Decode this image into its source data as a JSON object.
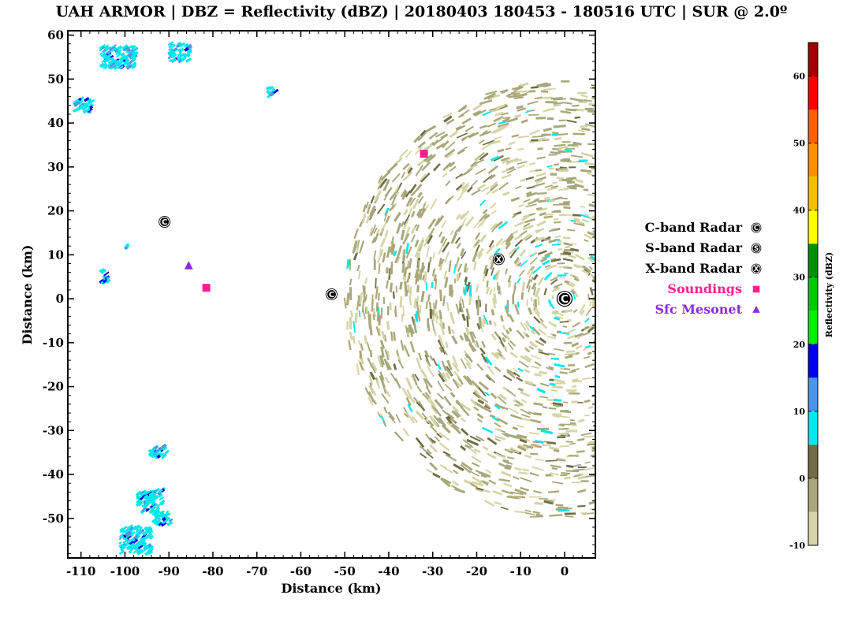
{
  "chart_data": {
    "type": "heatmap",
    "title": "UAH ARMOR | DBZ = Reflectivity (dBZ) | 20180403 180453 - 180516 UTC | SUR @ 2.0º",
    "xlabel": "Distance (km)",
    "ylabel": "Distance (km)",
    "xlim": [
      -113,
      7
    ],
    "ylim": [
      -59,
      61
    ],
    "x_ticks": [
      -110,
      -100,
      -90,
      -80,
      -70,
      -60,
      -50,
      -40,
      -30,
      -20,
      -10,
      0
    ],
    "y_ticks": [
      60,
      50,
      40,
      30,
      20,
      10,
      0,
      -10,
      -20,
      -30,
      -40,
      -50
    ],
    "grid": false,
    "colorbar": {
      "label": "Reflectivity (dBZ)",
      "ticks": [
        60,
        50,
        40,
        30,
        20,
        10,
        0,
        -10
      ],
      "range": [
        -10,
        65
      ],
      "bins": [
        {
          "from": -10,
          "to": -5,
          "color": "#d6d4a6"
        },
        {
          "from": -5,
          "to": 0,
          "color": "#a9a77a"
        },
        {
          "from": 0,
          "to": 5,
          "color": "#6e6d45"
        },
        {
          "from": 5,
          "to": 10,
          "color": "#00e8ec"
        },
        {
          "from": 10,
          "to": 15,
          "color": "#4a95e8"
        },
        {
          "from": 15,
          "to": 20,
          "color": "#0000e8"
        },
        {
          "from": 20,
          "to": 25,
          "color": "#00ee00"
        },
        {
          "from": 25,
          "to": 30,
          "color": "#00c800"
        },
        {
          "from": 30,
          "to": 35,
          "color": "#009000"
        },
        {
          "from": 35,
          "to": 40,
          "color": "#ffff00"
        },
        {
          "from": 40,
          "to": 45,
          "color": "#f0c000"
        },
        {
          "from": 45,
          "to": 50,
          "color": "#ff9000"
        },
        {
          "from": 50,
          "to": 55,
          "color": "#ff6000"
        },
        {
          "from": 55,
          "to": 60,
          "color": "#ff0000"
        },
        {
          "from": 60,
          "to": 65,
          "color": "#a00000"
        }
      ]
    },
    "echo_region": {
      "center": [
        0,
        0
      ],
      "radius_km": 50,
      "dominant_dbz": [
        -10,
        5
      ]
    },
    "markers": [
      {
        "type": "C-band Radar",
        "x": -91,
        "y": 17.5
      },
      {
        "type": "C-band Radar",
        "x": 0,
        "y": 0
      },
      {
        "type": "C-band Radar",
        "x": -53,
        "y": 1
      },
      {
        "type": "X-band Radar",
        "x": -15,
        "y": 9
      },
      {
        "type": "Soundings",
        "x": -32,
        "y": 33
      },
      {
        "type": "Soundings",
        "x": -81.5,
        "y": 2.5
      },
      {
        "type": "Sfc Mesonet",
        "x": -85.5,
        "y": 7.5
      }
    ],
    "legend": {
      "placement": "right",
      "entries": [
        {
          "label": "C-band Radar",
          "symbol": "C",
          "color": "#000000"
        },
        {
          "label": "S-band Radar",
          "symbol": "S",
          "color": "#000000"
        },
        {
          "label": "X-band Radar",
          "symbol": "X",
          "color": "#000000"
        },
        {
          "label": "Soundings",
          "symbol": "square",
          "color": "#ff1f8f"
        },
        {
          "label": "Sfc Mesonet",
          "symbol": "triangle",
          "color": "#8a2be2"
        }
      ]
    }
  }
}
